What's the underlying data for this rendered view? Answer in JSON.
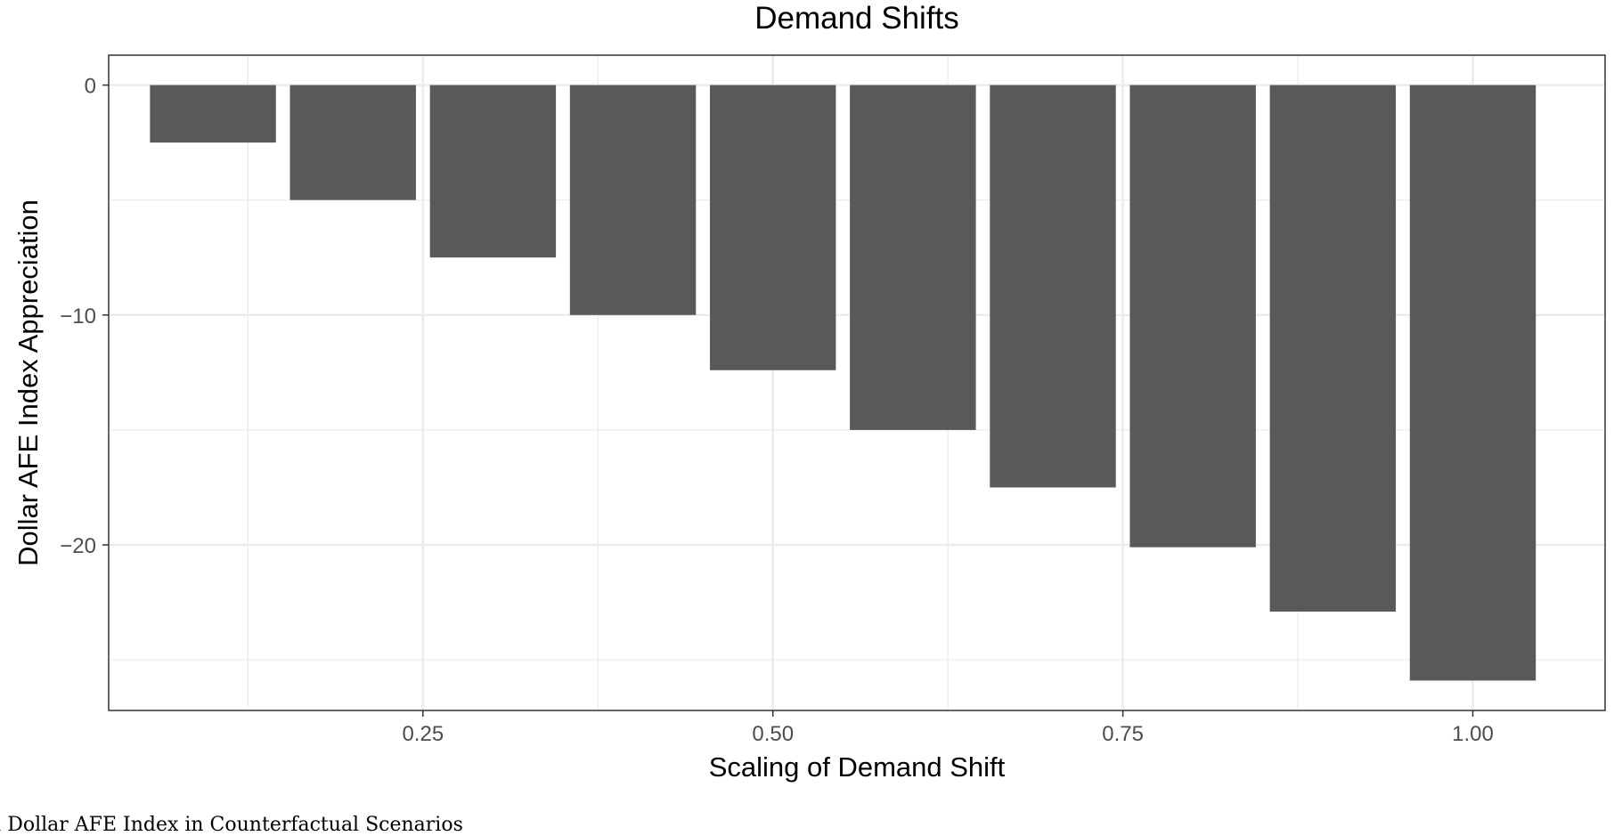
{
  "chart_data": {
    "type": "bar",
    "title": "Demand Shifts",
    "xlabel": "Scaling of Demand Shift",
    "ylabel": "Dollar AFE Index Appreciation",
    "x": [
      0.1,
      0.2,
      0.3,
      0.4,
      0.5,
      0.6,
      0.7,
      0.8,
      0.9,
      1.0
    ],
    "values": [
      -2.5,
      -5.0,
      -7.5,
      -10.0,
      -12.4,
      -15.0,
      -17.5,
      -20.1,
      -22.9,
      -25.9
    ],
    "bar_width": 0.09,
    "xlim": [
      0.0255,
      1.0945
    ],
    "ylim": [
      -27.2,
      1.3
    ],
    "x_ticks": [
      0.25,
      0.5,
      0.75,
      1.0
    ],
    "x_tick_labels": [
      "0.25",
      "0.50",
      "0.75",
      "1.00"
    ],
    "y_ticks": [
      0,
      -10,
      -20
    ],
    "y_tick_labels": [
      "0",
      "−10",
      "−20"
    ],
    "grid": true,
    "bar_color": "#595959",
    "grid_color": "#ebebeb",
    "panel_border_color": "#333333"
  },
  "caption": "e in Dollar AFE Index in Counterfactual Scenarios"
}
